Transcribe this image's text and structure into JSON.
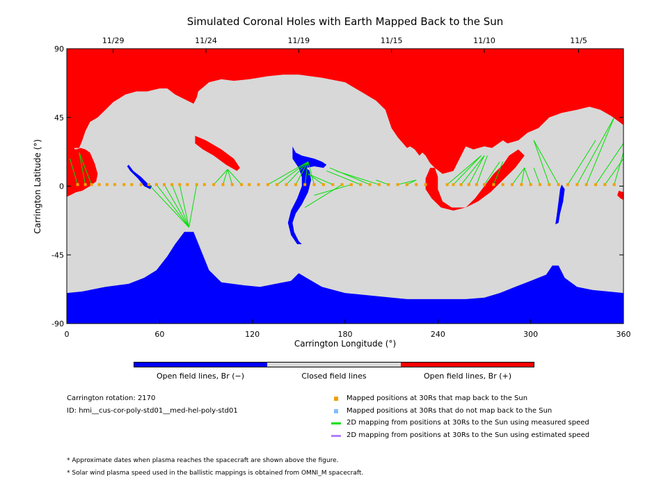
{
  "title": "Simulated Coronal Holes with Earth Mapped Back to the Sun",
  "colors": {
    "open_negative": "#0000ff",
    "closed": "#d8d8d8",
    "open_positive": "#ff0000",
    "mapped_back": "#f0a000",
    "not_mapped_back": "#7fbfff",
    "measured_speed": "#00e000",
    "estimated_speed": "#b07fff"
  },
  "chart_data": {
    "type": "heatmap",
    "title": "Simulated Coronal Holes with Earth Mapped Back to the Sun",
    "xlabel": "Carrington Longitude (°)",
    "ylabel": "Carrington Latitude (°)",
    "xlim": [
      0,
      360
    ],
    "ylim": [
      -90,
      90
    ],
    "x_ticks": [
      {
        "value": 0,
        "label": "0"
      },
      {
        "value": 60,
        "label": "60"
      },
      {
        "value": 120,
        "label": "120"
      },
      {
        "value": 180,
        "label": "180"
      },
      {
        "value": 240,
        "label": "240"
      },
      {
        "value": 300,
        "label": "300"
      },
      {
        "value": 360,
        "label": "360"
      }
    ],
    "y_ticks": [
      {
        "value": 90,
        "label": "90"
      },
      {
        "value": 45,
        "label": "45"
      },
      {
        "value": 0,
        "label": "0"
      },
      {
        "value": -45,
        "label": "-45"
      },
      {
        "value": -90,
        "label": "-90"
      }
    ],
    "top_date_ticks": [
      {
        "longitude": 30,
        "label": "11/29"
      },
      {
        "longitude": 90,
        "label": "11/24"
      },
      {
        "longitude": 150,
        "label": "11/19"
      },
      {
        "longitude": 210,
        "label": "11/15"
      },
      {
        "longitude": 270,
        "label": "11/10"
      },
      {
        "longitude": 331,
        "label": "11/5"
      }
    ],
    "colorbar": [
      {
        "label": "Open field lines, Br (−)",
        "color": "#0000ff"
      },
      {
        "label": "Closed field lines",
        "color": "#d8d8d8"
      },
      {
        "label": "Open field lines, Br (+)",
        "color": "#ff0000"
      }
    ],
    "regions": {
      "north_positive": [
        [
          0,
          90
        ],
        [
          360,
          90
        ],
        [
          360,
          40
        ],
        [
          352,
          46
        ],
        [
          345,
          50
        ],
        [
          338,
          52
        ],
        [
          330,
          50
        ],
        [
          320,
          48
        ],
        [
          312,
          45
        ],
        [
          305,
          38
        ],
        [
          298,
          35
        ],
        [
          292,
          30
        ],
        [
          285,
          28
        ],
        [
          282,
          30
        ],
        [
          275,
          25
        ],
        [
          270,
          26
        ],
        [
          263,
          24
        ],
        [
          258,
          26
        ],
        [
          255,
          20
        ],
        [
          250,
          10
        ],
        [
          243,
          8
        ],
        [
          238,
          12
        ],
        [
          235,
          15
        ],
        [
          232,
          20
        ],
        [
          230,
          22
        ],
        [
          228,
          20
        ],
        [
          225,
          24
        ],
        [
          222,
          26
        ],
        [
          220,
          25
        ],
        [
          214,
          32
        ],
        [
          210,
          38
        ],
        [
          208,
          44
        ],
        [
          206,
          50
        ],
        [
          200,
          56
        ],
        [
          190,
          62
        ],
        [
          180,
          68
        ],
        [
          165,
          71
        ],
        [
          150,
          73
        ],
        [
          140,
          73
        ],
        [
          130,
          72
        ],
        [
          118,
          70
        ],
        [
          108,
          69
        ],
        [
          100,
          70
        ],
        [
          92,
          68
        ],
        [
          85,
          62
        ],
        [
          84,
          58
        ],
        [
          82,
          54
        ],
        [
          78,
          56
        ],
        [
          70,
          60
        ],
        [
          65,
          64
        ],
        [
          60,
          64
        ],
        [
          52,
          62
        ],
        [
          45,
          62
        ],
        [
          38,
          60
        ],
        [
          30,
          55
        ],
        [
          25,
          50
        ],
        [
          20,
          45
        ],
        [
          15,
          42
        ],
        [
          12,
          36
        ],
        [
          10,
          30
        ],
        [
          8,
          25
        ],
        [
          5,
          25
        ],
        [
          3,
          20
        ],
        [
          0,
          20
        ]
      ],
      "left_positive_lobe": [
        [
          0,
          28
        ],
        [
          3,
          25
        ],
        [
          6,
          24
        ],
        [
          9,
          25
        ],
        [
          12,
          24
        ],
        [
          15,
          22
        ],
        [
          18,
          15
        ],
        [
          20,
          8
        ],
        [
          19,
          3
        ],
        [
          15,
          0
        ],
        [
          10,
          -3
        ],
        [
          6,
          -4
        ],
        [
          2,
          -6
        ],
        [
          0,
          -7
        ]
      ],
      "right_edge_positive": [
        [
          360,
          -4
        ],
        [
          357,
          -3
        ],
        [
          356,
          -6
        ],
        [
          358,
          -8
        ],
        [
          360,
          -9
        ]
      ],
      "mid_positive_stripe": [
        [
          83,
          33
        ],
        [
          90,
          30
        ],
        [
          100,
          24
        ],
        [
          108,
          18
        ],
        [
          112,
          12
        ],
        [
          110,
          10
        ],
        [
          103,
          14
        ],
        [
          95,
          20
        ],
        [
          88,
          24
        ],
        [
          83,
          28
        ]
      ],
      "spiral_positive": [
        [
          235,
          12
        ],
        [
          232,
          5
        ],
        [
          232,
          -2
        ],
        [
          236,
          -8
        ],
        [
          242,
          -14
        ],
        [
          250,
          -16
        ],
        [
          258,
          -14
        ],
        [
          264,
          -8
        ],
        [
          270,
          0
        ],
        [
          276,
          8
        ],
        [
          282,
          14
        ],
        [
          286,
          20
        ],
        [
          292,
          24
        ],
        [
          296,
          20
        ],
        [
          290,
          12
        ],
        [
          282,
          4
        ],
        [
          274,
          -4
        ],
        [
          266,
          -10
        ],
        [
          258,
          -14
        ],
        [
          249,
          -14
        ],
        [
          243,
          -10
        ],
        [
          240,
          -2
        ],
        [
          240,
          6
        ],
        [
          238,
          12
        ]
      ],
      "south_negative": [
        [
          0,
          -90
        ],
        [
          360,
          -90
        ],
        [
          360,
          -70
        ],
        [
          350,
          -69
        ],
        [
          340,
          -68
        ],
        [
          330,
          -66
        ],
        [
          322,
          -60
        ],
        [
          318,
          -52
        ],
        [
          314,
          -52
        ],
        [
          310,
          -58
        ],
        [
          300,
          -62
        ],
        [
          290,
          -66
        ],
        [
          280,
          -70
        ],
        [
          270,
          -73
        ],
        [
          258,
          -74
        ],
        [
          240,
          -74
        ],
        [
          220,
          -74
        ],
        [
          200,
          -72
        ],
        [
          180,
          -70
        ],
        [
          165,
          -66
        ],
        [
          155,
          -60
        ],
        [
          150,
          -57
        ],
        [
          145,
          -62
        ],
        [
          135,
          -64
        ],
        [
          125,
          -66
        ],
        [
          115,
          -65
        ],
        [
          100,
          -63
        ],
        [
          92,
          -55
        ],
        [
          86,
          -40
        ],
        [
          82,
          -30
        ],
        [
          76,
          -30
        ],
        [
          70,
          -38
        ],
        [
          65,
          -46
        ],
        [
          58,
          -55
        ],
        [
          50,
          -60
        ],
        [
          40,
          -64
        ],
        [
          25,
          -66
        ],
        [
          10,
          -69
        ],
        [
          0,
          -70
        ]
      ],
      "blue_channel": [
        [
          146,
          26
        ],
        [
          148,
          22
        ],
        [
          152,
          20
        ],
        [
          160,
          18
        ],
        [
          165,
          16
        ],
        [
          168,
          14
        ],
        [
          166,
          12
        ],
        [
          160,
          13
        ],
        [
          155,
          12
        ],
        [
          157,
          10
        ],
        [
          158,
          4
        ],
        [
          156,
          -4
        ],
        [
          152,
          -12
        ],
        [
          148,
          -18
        ],
        [
          146,
          -24
        ],
        [
          147,
          -30
        ],
        [
          150,
          -36
        ],
        [
          152,
          -38
        ],
        [
          149,
          -38
        ],
        [
          145,
          -32
        ],
        [
          143,
          -24
        ],
        [
          145,
          -16
        ],
        [
          149,
          -8
        ],
        [
          152,
          0
        ],
        [
          152,
          6
        ],
        [
          150,
          12
        ],
        [
          146,
          18
        ]
      ],
      "blue_small_1": [
        [
          40,
          14
        ],
        [
          43,
          10
        ],
        [
          48,
          6
        ],
        [
          52,
          2
        ],
        [
          55,
          0
        ],
        [
          54,
          -2
        ],
        [
          50,
          0
        ],
        [
          46,
          5
        ],
        [
          41,
          10
        ],
        [
          39,
          13
        ]
      ],
      "blue_small_2": [
        [
          320,
          1
        ],
        [
          322,
          -2
        ],
        [
          321,
          -10
        ],
        [
          319,
          -18
        ],
        [
          318,
          -24
        ],
        [
          316,
          -25
        ],
        [
          317,
          -18
        ],
        [
          318,
          -10
        ],
        [
          319,
          -2
        ]
      ]
    },
    "mapped_positions_30Rs": {
      "latitude": 1,
      "longitudes": [
        7,
        12,
        16,
        21,
        26,
        31,
        37,
        42,
        48,
        53,
        58,
        63,
        68,
        73,
        78,
        84,
        89,
        95,
        101,
        107,
        113,
        118,
        124,
        130,
        136,
        142,
        148,
        154,
        160,
        166,
        172,
        178,
        184,
        190,
        196,
        202,
        208,
        214,
        220,
        226,
        232,
        246,
        250,
        255,
        260,
        265,
        270,
        276,
        282,
        288,
        294,
        300,
        306,
        312,
        318,
        324,
        330,
        336,
        342,
        348,
        354
      ]
    },
    "mappings_measured_speed": [
      {
        "from_lon": 7,
        "to_lon": 2,
        "to_lat": 18
      },
      {
        "from_lon": 12,
        "to_lon": 8,
        "to_lat": 22
      },
      {
        "from_lon": 16,
        "to_lon": 8,
        "to_lat": 22
      },
      {
        "from_lon": 53,
        "to_lon": 79,
        "to_lat": -27
      },
      {
        "from_lon": 58,
        "to_lon": 79,
        "to_lat": -27
      },
      {
        "from_lon": 63,
        "to_lon": 79,
        "to_lat": -27
      },
      {
        "from_lon": 68,
        "to_lon": 79,
        "to_lat": -27
      },
      {
        "from_lon": 73,
        "to_lon": 79,
        "to_lat": -27
      },
      {
        "from_lon": 84,
        "to_lon": 79,
        "to_lat": -27
      },
      {
        "from_lon": 95,
        "to_lon": 104,
        "to_lat": 11
      },
      {
        "from_lon": 101,
        "to_lon": 104,
        "to_lat": 11
      },
      {
        "from_lon": 107,
        "to_lon": 104,
        "to_lat": 11
      },
      {
        "from_lon": 113,
        "to_lon": 104,
        "to_lat": 11
      },
      {
        "from_lon": 130,
        "to_lon": 156,
        "to_lat": 16
      },
      {
        "from_lon": 136,
        "to_lon": 156,
        "to_lat": 16
      },
      {
        "from_lon": 142,
        "to_lon": 156,
        "to_lat": 16
      },
      {
        "from_lon": 148,
        "to_lon": 156,
        "to_lat": 16
      },
      {
        "from_lon": 154,
        "to_lon": 156,
        "to_lat": 16
      },
      {
        "from_lon": 160,
        "to_lon": 156,
        "to_lat": 16
      },
      {
        "from_lon": 166,
        "to_lon": 156,
        "to_lat": 8
      },
      {
        "from_lon": 172,
        "to_lon": 156,
        "to_lat": 8
      },
      {
        "from_lon": 178,
        "to_lon": 154,
        "to_lat": -14
      },
      {
        "from_lon": 184,
        "to_lon": 160,
        "to_lat": -6
      },
      {
        "from_lon": 190,
        "to_lon": 168,
        "to_lat": 10
      },
      {
        "from_lon": 196,
        "to_lon": 170,
        "to_lat": 12
      },
      {
        "from_lon": 202,
        "to_lon": 174,
        "to_lat": 10
      },
      {
        "from_lon": 208,
        "to_lon": 200,
        "to_lat": 4
      },
      {
        "from_lon": 214,
        "to_lon": 226,
        "to_lat": 4
      },
      {
        "from_lon": 220,
        "to_lon": 226,
        "to_lat": 4
      },
      {
        "from_lon": 246,
        "to_lon": 268,
        "to_lat": 20
      },
      {
        "from_lon": 250,
        "to_lon": 268,
        "to_lat": 20
      },
      {
        "from_lon": 255,
        "to_lon": 270,
        "to_lat": 20
      },
      {
        "from_lon": 260,
        "to_lon": 270,
        "to_lat": 20
      },
      {
        "from_lon": 265,
        "to_lon": 272,
        "to_lat": 20
      },
      {
        "from_lon": 270,
        "to_lon": 280,
        "to_lat": 16
      },
      {
        "from_lon": 276,
        "to_lon": 282,
        "to_lat": 16
      },
      {
        "from_lon": 288,
        "to_lon": 296,
        "to_lat": 12
      },
      {
        "from_lon": 294,
        "to_lon": 296,
        "to_lat": 12
      },
      {
        "from_lon": 300,
        "to_lon": 296,
        "to_lat": 12
      },
      {
        "from_lon": 306,
        "to_lon": 302,
        "to_lat": 12
      },
      {
        "from_lon": 312,
        "to_lon": 302,
        "to_lat": 30
      },
      {
        "from_lon": 318,
        "to_lon": 302,
        "to_lat": 30
      },
      {
        "from_lon": 324,
        "to_lon": 342,
        "to_lat": 30
      },
      {
        "from_lon": 330,
        "to_lon": 354,
        "to_lat": 45
      },
      {
        "from_lon": 336,
        "to_lon": 354,
        "to_lat": 45
      },
      {
        "from_lon": 342,
        "to_lon": 360,
        "to_lat": 28
      },
      {
        "from_lon": 348,
        "to_lon": 360,
        "to_lat": 18
      },
      {
        "from_lon": 354,
        "to_lon": 360,
        "to_lat": 22
      }
    ]
  },
  "info": {
    "rotation": "Carrington rotation: 2170",
    "id": "ID: hmi__cus-cor-poly-std01__med-hel-poly-std01"
  },
  "legend": [
    {
      "kind": "square",
      "color": "#f0a000",
      "label": "Mapped positions at 30Rs that map back to the Sun"
    },
    {
      "kind": "square",
      "color": "#7fbfff",
      "label": "Mapped positions at 30Rs that do not map back to the Sun"
    },
    {
      "kind": "line",
      "color": "#00e000",
      "label": "2D mapping from positions at 30Rs to the Sun using measured speed"
    },
    {
      "kind": "line",
      "color": "#b07fff",
      "label": "2D mapping from positions at 30Rs to the Sun using estimated speed"
    }
  ],
  "footnotes": [
    "* Approximate dates when plasma reaches the spacecraft are shown above the figure.",
    "* Solar wind plasma speed used in the ballistic mappings is obtained from OMNI_M spacecraft."
  ]
}
